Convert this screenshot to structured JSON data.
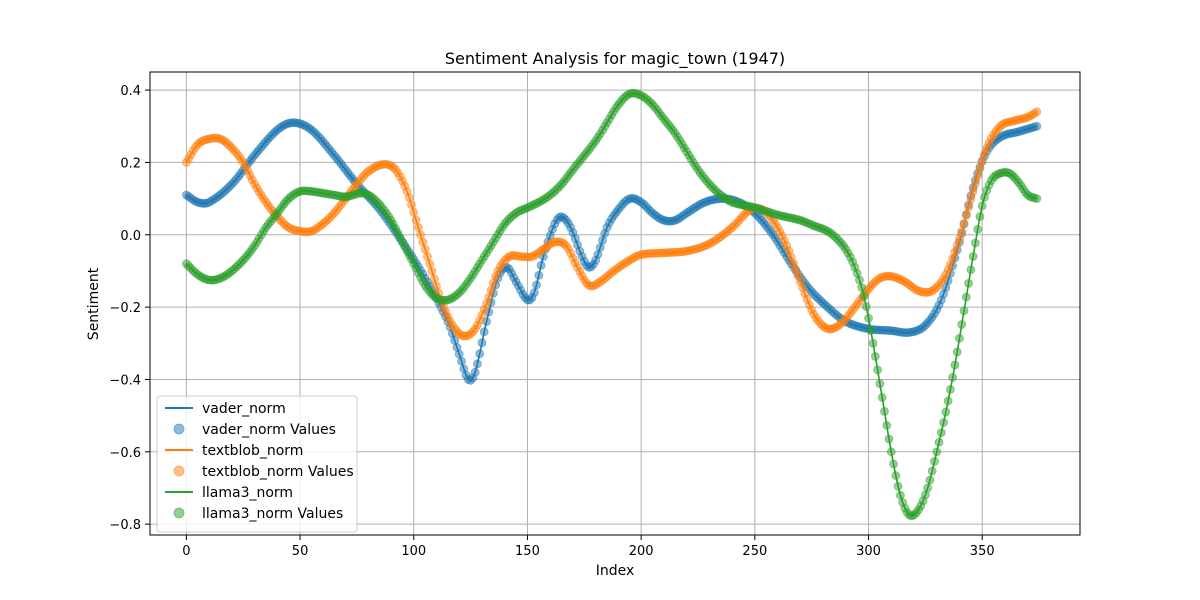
{
  "chart_data": {
    "type": "line",
    "title": "Sentiment Analysis for magic_town (1947)",
    "xlabel": "Index",
    "ylabel": "Sentiment",
    "xlim": [
      -16,
      393
    ],
    "ylim": [
      -0.83,
      0.45
    ],
    "xticks": [
      0,
      50,
      100,
      150,
      200,
      250,
      300,
      350
    ],
    "yticks": [
      -0.8,
      -0.6,
      -0.4,
      -0.2,
      0.0,
      0.2,
      0.4
    ],
    "xtick_labels": [
      "0",
      "50",
      "100",
      "150",
      "200",
      "250",
      "300",
      "350"
    ],
    "ytick_labels": [
      "−0.8",
      "−0.6",
      "−0.4",
      "−0.2",
      "0.0",
      "0.2",
      "0.4"
    ],
    "grid": true,
    "legend_position": "lower-left",
    "x_max": 374,
    "series": [
      {
        "name": "vader_norm",
        "scatter_name": "vader_norm Values",
        "color": "#1f77b4",
        "keypoints": [
          [
            0,
            0.11
          ],
          [
            5,
            0.09
          ],
          [
            10,
            0.09
          ],
          [
            20,
            0.14
          ],
          [
            30,
            0.22
          ],
          [
            40,
            0.29
          ],
          [
            47,
            0.31
          ],
          [
            55,
            0.29
          ],
          [
            65,
            0.22
          ],
          [
            75,
            0.14
          ],
          [
            85,
            0.07
          ],
          [
            95,
            -0.02
          ],
          [
            105,
            -0.12
          ],
          [
            115,
            -0.24
          ],
          [
            120,
            -0.33
          ],
          [
            124,
            -0.4
          ],
          [
            127,
            -0.38
          ],
          [
            132,
            -0.24
          ],
          [
            137,
            -0.12
          ],
          [
            141,
            -0.09
          ],
          [
            145,
            -0.13
          ],
          [
            150,
            -0.18
          ],
          [
            153,
            -0.16
          ],
          [
            157,
            -0.06
          ],
          [
            162,
            0.03
          ],
          [
            165,
            0.05
          ],
          [
            169,
            0.02
          ],
          [
            174,
            -0.06
          ],
          [
            177,
            -0.09
          ],
          [
            180,
            -0.07
          ],
          [
            185,
            0.02
          ],
          [
            190,
            0.07
          ],
          [
            195,
            0.1
          ],
          [
            200,
            0.09
          ],
          [
            205,
            0.06
          ],
          [
            210,
            0.04
          ],
          [
            215,
            0.04
          ],
          [
            220,
            0.06
          ],
          [
            228,
            0.09
          ],
          [
            236,
            0.1
          ],
          [
            243,
            0.09
          ],
          [
            250,
            0.06
          ],
          [
            258,
            0.0
          ],
          [
            266,
            -0.08
          ],
          [
            274,
            -0.15
          ],
          [
            282,
            -0.2
          ],
          [
            290,
            -0.24
          ],
          [
            300,
            -0.26
          ],
          [
            310,
            -0.265
          ],
          [
            318,
            -0.27
          ],
          [
            325,
            -0.25
          ],
          [
            332,
            -0.18
          ],
          [
            340,
            -0.02
          ],
          [
            346,
            0.13
          ],
          [
            352,
            0.23
          ],
          [
            358,
            0.27
          ],
          [
            366,
            0.285
          ],
          [
            374,
            0.3
          ]
        ]
      },
      {
        "name": "textblob_norm",
        "scatter_name": "textblob_norm Values",
        "color": "#ff7f0e",
        "keypoints": [
          [
            0,
            0.2
          ],
          [
            5,
            0.25
          ],
          [
            10,
            0.265
          ],
          [
            15,
            0.265
          ],
          [
            20,
            0.24
          ],
          [
            25,
            0.2
          ],
          [
            30,
            0.14
          ],
          [
            35,
            0.09
          ],
          [
            40,
            0.05
          ],
          [
            45,
            0.02
          ],
          [
            50,
            0.01
          ],
          [
            55,
            0.01
          ],
          [
            60,
            0.03
          ],
          [
            65,
            0.06
          ],
          [
            70,
            0.1
          ],
          [
            75,
            0.14
          ],
          [
            80,
            0.175
          ],
          [
            87,
            0.195
          ],
          [
            92,
            0.18
          ],
          [
            97,
            0.12
          ],
          [
            102,
            0.02
          ],
          [
            107,
            -0.08
          ],
          [
            112,
            -0.18
          ],
          [
            117,
            -0.25
          ],
          [
            122,
            -0.28
          ],
          [
            127,
            -0.26
          ],
          [
            132,
            -0.19
          ],
          [
            137,
            -0.1
          ],
          [
            142,
            -0.06
          ],
          [
            147,
            -0.06
          ],
          [
            152,
            -0.06
          ],
          [
            157,
            -0.04
          ],
          [
            162,
            -0.02
          ],
          [
            167,
            -0.03
          ],
          [
            172,
            -0.09
          ],
          [
            177,
            -0.14
          ],
          [
            182,
            -0.13
          ],
          [
            188,
            -0.1
          ],
          [
            195,
            -0.07
          ],
          [
            200,
            -0.055
          ],
          [
            210,
            -0.05
          ],
          [
            220,
            -0.045
          ],
          [
            230,
            -0.025
          ],
          [
            240,
            0.02
          ],
          [
            248,
            0.07
          ],
          [
            253,
            0.07
          ],
          [
            258,
            0.04
          ],
          [
            264,
            -0.03
          ],
          [
            270,
            -0.13
          ],
          [
            276,
            -0.22
          ],
          [
            282,
            -0.26
          ],
          [
            288,
            -0.245
          ],
          [
            294,
            -0.2
          ],
          [
            300,
            -0.15
          ],
          [
            305,
            -0.12
          ],
          [
            310,
            -0.115
          ],
          [
            316,
            -0.13
          ],
          [
            322,
            -0.155
          ],
          [
            328,
            -0.155
          ],
          [
            334,
            -0.11
          ],
          [
            340,
            -0.01
          ],
          [
            346,
            0.12
          ],
          [
            352,
            0.24
          ],
          [
            358,
            0.3
          ],
          [
            364,
            0.315
          ],
          [
            370,
            0.325
          ],
          [
            374,
            0.34
          ]
        ]
      },
      {
        "name": "llama3_norm",
        "scatter_name": "llama3_norm Values",
        "color": "#2ca02c",
        "keypoints": [
          [
            0,
            -0.08
          ],
          [
            5,
            -0.11
          ],
          [
            10,
            -0.125
          ],
          [
            15,
            -0.12
          ],
          [
            20,
            -0.1
          ],
          [
            25,
            -0.07
          ],
          [
            30,
            -0.03
          ],
          [
            35,
            0.02
          ],
          [
            40,
            0.06
          ],
          [
            45,
            0.1
          ],
          [
            50,
            0.12
          ],
          [
            55,
            0.12
          ],
          [
            60,
            0.115
          ],
          [
            65,
            0.11
          ],
          [
            70,
            0.105
          ],
          [
            78,
            0.115
          ],
          [
            84,
            0.09
          ],
          [
            90,
            0.04
          ],
          [
            95,
            -0.02
          ],
          [
            100,
            -0.08
          ],
          [
            105,
            -0.14
          ],
          [
            110,
            -0.175
          ],
          [
            115,
            -0.18
          ],
          [
            120,
            -0.16
          ],
          [
            125,
            -0.12
          ],
          [
            130,
            -0.07
          ],
          [
            135,
            -0.02
          ],
          [
            140,
            0.03
          ],
          [
            145,
            0.06
          ],
          [
            150,
            0.075
          ],
          [
            155,
            0.09
          ],
          [
            160,
            0.11
          ],
          [
            165,
            0.14
          ],
          [
            170,
            0.18
          ],
          [
            180,
            0.26
          ],
          [
            185,
            0.31
          ],
          [
            190,
            0.36
          ],
          [
            195,
            0.39
          ],
          [
            200,
            0.385
          ],
          [
            205,
            0.36
          ],
          [
            210,
            0.32
          ],
          [
            215,
            0.28
          ],
          [
            220,
            0.23
          ],
          [
            225,
            0.18
          ],
          [
            230,
            0.14
          ],
          [
            235,
            0.11
          ],
          [
            240,
            0.09
          ],
          [
            250,
            0.075
          ],
          [
            260,
            0.055
          ],
          [
            270,
            0.04
          ],
          [
            276,
            0.025
          ],
          [
            282,
            0.01
          ],
          [
            286,
            -0.01
          ],
          [
            290,
            -0.04
          ],
          [
            294,
            -0.09
          ],
          [
            298,
            -0.17
          ],
          [
            302,
            -0.3
          ],
          [
            306,
            -0.45
          ],
          [
            310,
            -0.6
          ],
          [
            314,
            -0.72
          ],
          [
            318,
            -0.775
          ],
          [
            322,
            -0.76
          ],
          [
            326,
            -0.7
          ],
          [
            330,
            -0.6
          ],
          [
            334,
            -0.49
          ],
          [
            338,
            -0.36
          ],
          [
            342,
            -0.21
          ],
          [
            346,
            -0.06
          ],
          [
            350,
            0.08
          ],
          [
            354,
            0.15
          ],
          [
            358,
            0.17
          ],
          [
            362,
            0.17
          ],
          [
            366,
            0.145
          ],
          [
            370,
            0.11
          ],
          [
            374,
            0.1
          ]
        ]
      }
    ]
  }
}
